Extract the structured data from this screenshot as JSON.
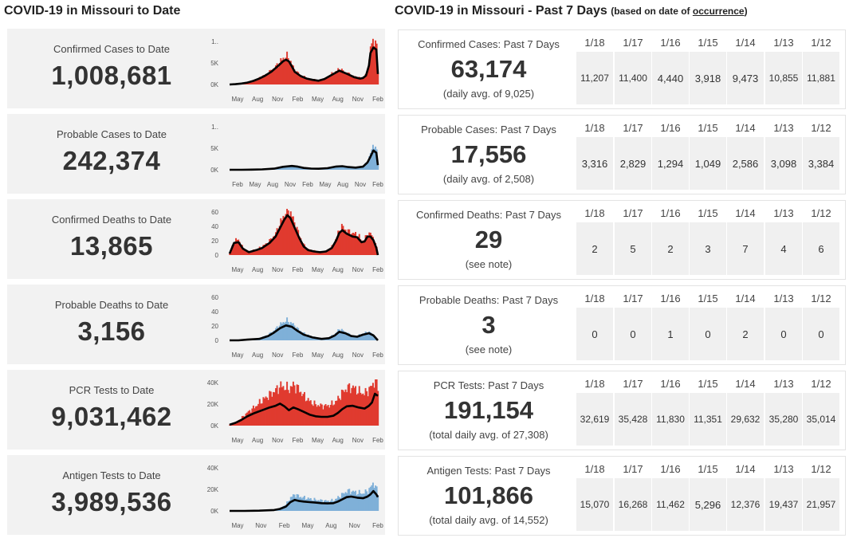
{
  "left_title": "COVID-19 in Missouri to Date",
  "right_title": "COVID-19 in Missouri - Past 7 Days",
  "right_subtitle_prefix": "(based on date of ",
  "right_subtitle_link": "occurrence",
  "right_subtitle_suffix": ")",
  "colors": {
    "red": "#e03a2f",
    "blue": "#7fb0d8",
    "line": "#000000",
    "card_bg": "#f2f2f2",
    "cell_bg": "#f0f0f0"
  },
  "left_cards": [
    {
      "label": "Confirmed Cases to Date",
      "value": "1,008,681"
    },
    {
      "label": "Probable Cases to Date",
      "value": "242,374"
    },
    {
      "label": "Confirmed Deaths to Date",
      "value": "13,865"
    },
    {
      "label": "Probable Deaths to Date",
      "value": "3,156"
    },
    {
      "label": "PCR Tests to Date",
      "value": "9,031,462"
    },
    {
      "label": "Antigen Tests to Date",
      "value": "3,989,536"
    }
  ],
  "right_cards": [
    {
      "label": "Confirmed Cases: Past 7 Days",
      "value": "63,174",
      "note": "(daily avg. of 9,025)",
      "days": [
        "1/18",
        "1/17",
        "1/16",
        "1/15",
        "1/14",
        "1/13",
        "1/12"
      ],
      "values": [
        "11,207",
        "11,400",
        "4,440",
        "3,918",
        "9,473",
        "10,855",
        "11,881"
      ]
    },
    {
      "label": "Probable Cases: Past 7 Days",
      "value": "17,556",
      "note": "(daily avg. of 2,508)",
      "days": [
        "1/18",
        "1/17",
        "1/16",
        "1/15",
        "1/14",
        "1/13",
        "1/12"
      ],
      "values": [
        "3,316",
        "2,829",
        "1,294",
        "1,049",
        "2,586",
        "3,098",
        "3,384"
      ]
    },
    {
      "label": "Confirmed Deaths: Past 7 Days",
      "value": "29",
      "note": "(see note)",
      "days": [
        "1/18",
        "1/17",
        "1/16",
        "1/15",
        "1/14",
        "1/13",
        "1/12"
      ],
      "values": [
        "2",
        "5",
        "2",
        "3",
        "7",
        "4",
        "6"
      ]
    },
    {
      "label": "Probable Deaths: Past 7 Days",
      "value": "3",
      "note": "(see note)",
      "days": [
        "1/18",
        "1/17",
        "1/16",
        "1/15",
        "1/14",
        "1/13",
        "1/12"
      ],
      "values": [
        "0",
        "0",
        "1",
        "0",
        "2",
        "0",
        "0"
      ]
    },
    {
      "label": "PCR Tests: Past 7 Days",
      "value": "191,154",
      "note": "(total daily avg. of 27,308)",
      "days": [
        "1/18",
        "1/17",
        "1/16",
        "1/15",
        "1/14",
        "1/13",
        "1/12"
      ],
      "values": [
        "32,619",
        "35,428",
        "11,830",
        "11,351",
        "29,632",
        "35,280",
        "35,014"
      ]
    },
    {
      "label": "Antigen Tests: Past 7 Days",
      "value": "101,866",
      "note": "(total daily avg. of 14,552)",
      "days": [
        "1/18",
        "1/17",
        "1/16",
        "1/15",
        "1/14",
        "1/13",
        "1/12"
      ],
      "values": [
        "15,070",
        "16,268",
        "11,462",
        "5,296",
        "12,376",
        "19,437",
        "21,957"
      ]
    }
  ],
  "chart_data": [
    {
      "type": "area",
      "title": "Confirmed Cases to Date",
      "color": "red",
      "y_ticks": [
        "1..",
        "5K",
        "0K"
      ],
      "ylim": [
        0,
        11000
      ],
      "x_ticks": [
        "May",
        "Aug",
        "Nov",
        "Feb",
        "May",
        "Aug",
        "Nov",
        "Feb"
      ],
      "x": [
        0,
        0.04,
        0.08,
        0.12,
        0.16,
        0.2,
        0.24,
        0.28,
        0.32,
        0.36,
        0.38,
        0.4,
        0.42,
        0.44,
        0.48,
        0.52,
        0.56,
        0.6,
        0.64,
        0.68,
        0.72,
        0.74,
        0.76,
        0.8,
        0.84,
        0.88,
        0.9,
        0.92,
        0.94,
        0.95,
        0.97,
        0.99,
        1
      ],
      "values": [
        0,
        80,
        250,
        500,
        900,
        1500,
        2300,
        3300,
        4600,
        6200,
        6800,
        6300,
        4800,
        3300,
        2200,
        1500,
        1200,
        1000,
        1400,
        2300,
        3200,
        3700,
        3300,
        2600,
        1900,
        1500,
        1700,
        2300,
        5200,
        8800,
        11000,
        9500,
        3000
      ],
      "avg": [
        0,
        70,
        230,
        460,
        850,
        1400,
        2100,
        3000,
        4200,
        5500,
        5900,
        5500,
        4300,
        3000,
        2000,
        1400,
        1100,
        900,
        1300,
        2100,
        2900,
        3300,
        3000,
        2400,
        1750,
        1400,
        1550,
        2100,
        4500,
        7500,
        8800,
        8300,
        2500
      ]
    },
    {
      "type": "area",
      "title": "Probable Cases to Date",
      "color": "blue",
      "y_ticks": [
        "1..",
        "5K",
        "0K"
      ],
      "ylim": [
        0,
        6000
      ],
      "x_ticks": [
        "Feb",
        "May",
        "Aug",
        "Nov",
        "Feb",
        "May",
        "Aug",
        "Nov",
        "Feb"
      ],
      "x": [
        0,
        0.08,
        0.15,
        0.22,
        0.3,
        0.36,
        0.42,
        0.46,
        0.5,
        0.55,
        0.6,
        0.66,
        0.72,
        0.76,
        0.8,
        0.85,
        0.9,
        0.93,
        0.95,
        0.97,
        0.99,
        1
      ],
      "values": [
        0,
        0,
        20,
        60,
        150,
        420,
        560,
        430,
        250,
        160,
        140,
        230,
        460,
        520,
        380,
        300,
        430,
        1100,
        2100,
        3400,
        2600,
        700
      ],
      "avg": [
        0,
        0,
        20,
        55,
        140,
        380,
        500,
        400,
        240,
        150,
        130,
        210,
        420,
        470,
        350,
        280,
        400,
        950,
        1700,
        2500,
        2200,
        600
      ]
    },
    {
      "type": "area",
      "title": "Confirmed Deaths to Date",
      "color": "red",
      "y_ticks": [
        "60",
        "40",
        "20",
        "0"
      ],
      "ylim": [
        0,
        65
      ],
      "x_ticks": [
        "May",
        "Aug",
        "Nov",
        "Feb",
        "May",
        "Aug",
        "Nov",
        "Feb"
      ],
      "x": [
        0,
        0.03,
        0.06,
        0.09,
        0.13,
        0.18,
        0.22,
        0.27,
        0.31,
        0.34,
        0.37,
        0.39,
        0.41,
        0.44,
        0.47,
        0.5,
        0.53,
        0.57,
        0.61,
        0.65,
        0.69,
        0.72,
        0.74,
        0.76,
        0.79,
        0.83,
        0.86,
        0.89,
        0.91,
        0.93,
        0.95,
        0.97,
        0.99,
        1
      ],
      "values": [
        2,
        20,
        22,
        10,
        5,
        8,
        12,
        20,
        30,
        44,
        58,
        66,
        60,
        44,
        28,
        14,
        8,
        6,
        5,
        6,
        12,
        24,
        36,
        40,
        34,
        30,
        30,
        20,
        22,
        30,
        30,
        24,
        12,
        0
      ],
      "avg": [
        2,
        17,
        18,
        9,
        4,
        7,
        10,
        17,
        26,
        38,
        50,
        56,
        52,
        38,
        24,
        12,
        7,
        5,
        4,
        5,
        10,
        21,
        31,
        35,
        30,
        26,
        25,
        18,
        19,
        26,
        26,
        21,
        10,
        0
      ]
    },
    {
      "type": "area",
      "title": "Probable Deaths to Date",
      "color": "blue",
      "y_ticks": [
        "60",
        "40",
        "20",
        "0"
      ],
      "ylim": [
        0,
        65
      ],
      "x_ticks": [
        "May",
        "Aug",
        "Nov",
        "Feb",
        "May",
        "Aug",
        "Nov",
        "Feb"
      ],
      "x": [
        0,
        0.06,
        0.12,
        0.2,
        0.26,
        0.3,
        0.34,
        0.38,
        0.42,
        0.46,
        0.5,
        0.56,
        0.62,
        0.67,
        0.71,
        0.74,
        0.78,
        0.82,
        0.86,
        0.9,
        0.94,
        0.97,
        1
      ],
      "values": [
        0,
        0,
        1,
        3,
        8,
        14,
        22,
        28,
        24,
        16,
        10,
        5,
        3,
        4,
        9,
        16,
        12,
        7,
        6,
        10,
        12,
        8,
        0
      ],
      "avg": [
        0,
        0,
        1,
        2,
        6,
        11,
        17,
        21,
        19,
        13,
        8,
        4,
        2,
        3,
        7,
        12,
        10,
        6,
        5,
        8,
        10,
        7,
        0
      ]
    },
    {
      "type": "area",
      "title": "PCR Tests to Date",
      "color": "red",
      "y_ticks": [
        "40K",
        "20K",
        "0K"
      ],
      "ylim": [
        0,
        42000
      ],
      "x_ticks": [
        "May",
        "Aug",
        "Nov",
        "Feb",
        "May",
        "Aug",
        "Nov",
        "Feb"
      ],
      "x": [
        0,
        0.04,
        0.08,
        0.12,
        0.17,
        0.22,
        0.27,
        0.31,
        0.34,
        0.37,
        0.4,
        0.43,
        0.46,
        0.5,
        0.54,
        0.58,
        0.62,
        0.66,
        0.7,
        0.73,
        0.76,
        0.79,
        0.83,
        0.87,
        0.91,
        0.94,
        0.96,
        0.98,
        1
      ],
      "values": [
        1000,
        3000,
        7000,
        12000,
        17000,
        23000,
        28000,
        32000,
        36000,
        35000,
        33000,
        37000,
        34000,
        27000,
        22000,
        19000,
        18000,
        18000,
        20000,
        24000,
        30000,
        34000,
        35000,
        31000,
        29000,
        33000,
        36000,
        42000,
        35000
      ],
      "avg": [
        800,
        2500,
        5200,
        8500,
        11500,
        14000,
        16500,
        18000,
        20000,
        17500,
        14000,
        16500,
        15000,
        12500,
        10000,
        8500,
        8000,
        8000,
        9000,
        11500,
        15000,
        17500,
        18000,
        16500,
        15500,
        18000,
        21000,
        29000,
        27000
      ]
    },
    {
      "type": "area",
      "title": "Antigen Tests to Date",
      "color": "blue",
      "y_ticks": [
        "40K",
        "20K",
        "0K"
      ],
      "ylim": [
        0,
        42000
      ],
      "x_ticks": [
        "May",
        "Nov",
        "Feb",
        "May",
        "Aug",
        "Nov",
        "Feb"
      ],
      "x": [
        0,
        0.1,
        0.2,
        0.3,
        0.34,
        0.38,
        0.41,
        0.44,
        0.47,
        0.5,
        0.54,
        0.58,
        0.62,
        0.66,
        0.7,
        0.73,
        0.76,
        0.79,
        0.82,
        0.86,
        0.9,
        0.93,
        0.95,
        0.97,
        0.99,
        1
      ],
      "values": [
        0,
        0,
        300,
        1000,
        2500,
        6000,
        12000,
        15000,
        13000,
        12000,
        11000,
        10000,
        9500,
        9000,
        9500,
        12000,
        15000,
        18000,
        18000,
        16500,
        16000,
        18000,
        21000,
        26000,
        20000,
        16000
      ],
      "avg": [
        0,
        0,
        200,
        800,
        1800,
        4000,
        8000,
        10000,
        9000,
        8500,
        8000,
        7500,
        7000,
        6800,
        7000,
        8500,
        10500,
        12500,
        13000,
        12000,
        11500,
        13000,
        15000,
        18000,
        15000,
        12500
      ]
    }
  ]
}
